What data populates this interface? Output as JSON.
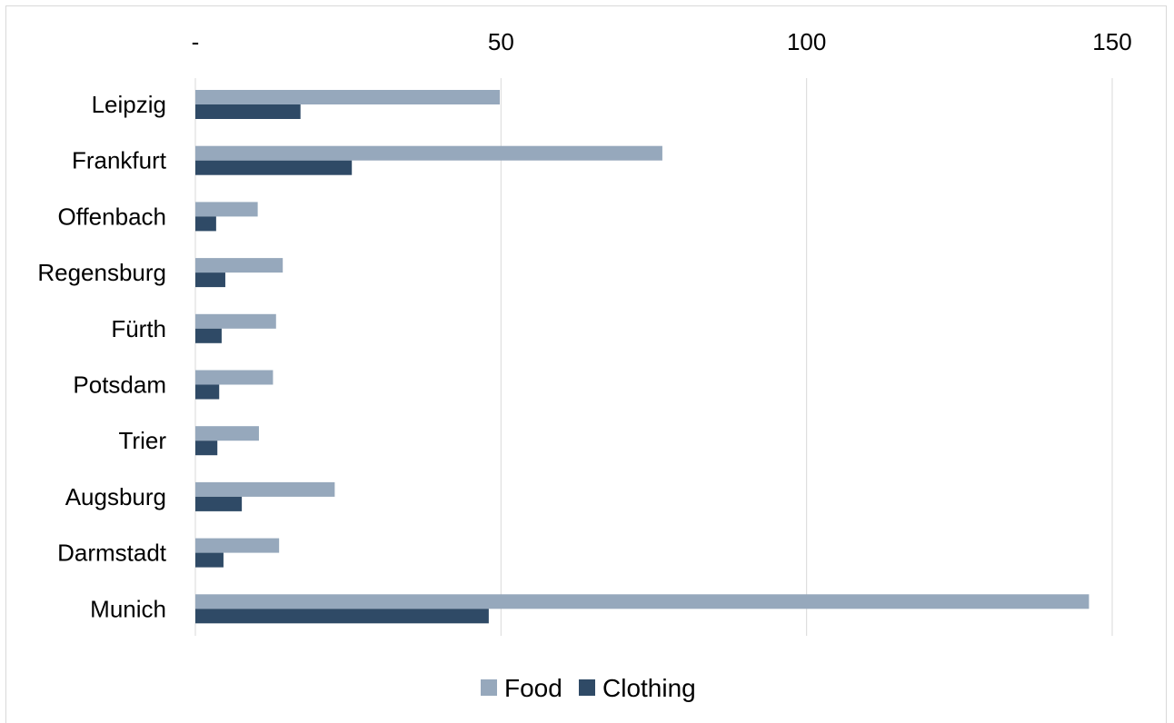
{
  "chart_data": {
    "type": "bar",
    "orientation": "horizontal",
    "categories": [
      "Leipzig",
      "Frankfurt",
      "Offenbach",
      "Regensburg",
      "Fürth",
      "Potsdam",
      "Trier",
      "Augsburg",
      "Darmstadt",
      "Munich"
    ],
    "series": [
      {
        "name": "Food",
        "color": "#96a8bc",
        "values": [
          49.8,
          76.4,
          10.2,
          14.3,
          13.2,
          12.7,
          10.4,
          22.8,
          13.7,
          146.2
        ]
      },
      {
        "name": "Clothing",
        "color": "#2f4a66",
        "values": [
          17.2,
          25.6,
          3.4,
          4.9,
          4.3,
          3.9,
          3.6,
          7.6,
          4.6,
          48.0
        ]
      }
    ],
    "xlim": [
      0,
      150
    ],
    "x_ticks": [
      0,
      50,
      100,
      150
    ],
    "x_tick_labels": [
      "-",
      "50",
      "100",
      "150"
    ],
    "x_axis_position": "top",
    "gridlines": true,
    "legend_position": "bottom",
    "title": "",
    "xlabel": "",
    "ylabel": ""
  }
}
